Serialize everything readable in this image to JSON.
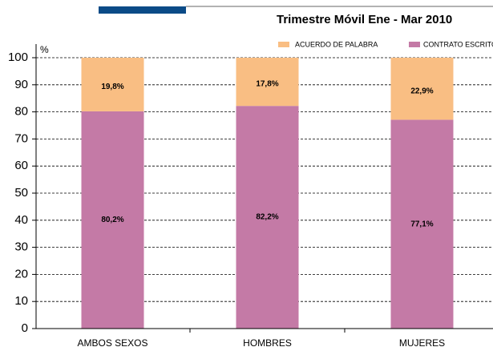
{
  "chart_data": {
    "type": "stacked_bar",
    "title": "Trimestre Móvil Ene - Mar 2010",
    "y_label": "%",
    "categories": [
      "AMBOS SEXOS",
      "HOMBRES",
      "MUJERES"
    ],
    "series": [
      {
        "name": "CONTRATO ESCRITO",
        "color": "#c47aa6",
        "values": [
          80.2,
          82.2,
          77.1
        ],
        "value_labels": [
          "80,2%",
          "82,2%",
          "77,1%"
        ]
      },
      {
        "name": "ACUERDO DE PALABRA",
        "color": "#f9be83",
        "values": [
          19.8,
          17.8,
          22.9
        ],
        "value_labels": [
          "19,8%",
          "17,8%",
          "22,9%"
        ]
      }
    ],
    "ylim": [
      0,
      100
    ],
    "yticks": [
      0,
      10,
      20,
      30,
      40,
      50,
      60,
      70,
      80,
      90,
      100
    ],
    "grid": true
  }
}
